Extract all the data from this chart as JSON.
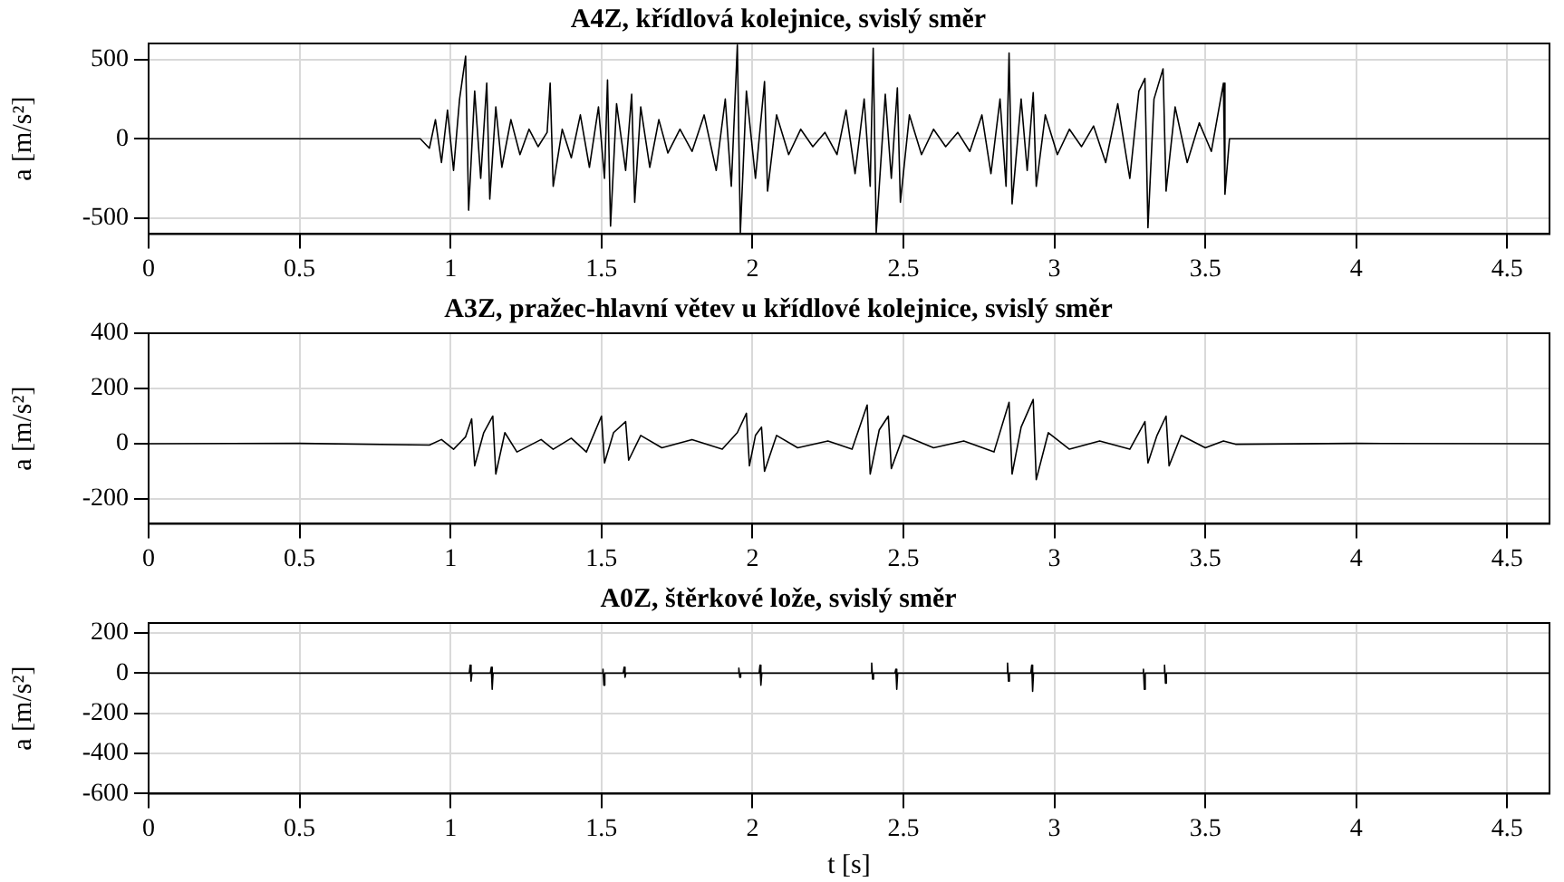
{
  "chart_data": [
    {
      "type": "line",
      "title": "A4Z, křídlová kolejnice, svislý směr",
      "ylabel": "a [m/s²]",
      "xlim": [
        0,
        4.64
      ],
      "xticks": [
        0,
        0.5,
        1,
        1.5,
        2,
        2.5,
        3,
        3.5,
        4,
        4.5
      ],
      "ylim": [
        -600,
        600
      ],
      "yticks": [
        -500,
        0,
        500
      ],
      "grid": true,
      "legend": false,
      "marker": "none",
      "line_style": "solid",
      "series": [
        {
          "color": "#000000",
          "x": [
            0,
            0.3,
            0.6,
            0.9,
            0.93,
            0.95,
            0.97,
            0.99,
            1.01,
            1.03,
            1.05,
            1.06,
            1.08,
            1.1,
            1.12,
            1.13,
            1.15,
            1.17,
            1.2,
            1.23,
            1.26,
            1.29,
            1.32,
            1.33,
            1.34,
            1.37,
            1.4,
            1.43,
            1.46,
            1.49,
            1.51,
            1.52,
            1.53,
            1.55,
            1.58,
            1.6,
            1.61,
            1.63,
            1.66,
            1.69,
            1.72,
            1.76,
            1.8,
            1.84,
            1.88,
            1.91,
            1.93,
            1.95,
            1.96,
            1.98,
            2.01,
            2.04,
            2.05,
            2.08,
            2.12,
            2.16,
            2.2,
            2.24,
            2.28,
            2.31,
            2.34,
            2.37,
            2.39,
            2.4,
            2.41,
            2.44,
            2.46,
            2.48,
            2.49,
            2.52,
            2.56,
            2.6,
            2.64,
            2.68,
            2.72,
            2.76,
            2.79,
            2.82,
            2.84,
            2.85,
            2.86,
            2.89,
            2.91,
            2.93,
            2.94,
            2.97,
            3.01,
            3.05,
            3.09,
            3.13,
            3.17,
            3.21,
            3.25,
            3.28,
            3.3,
            3.31,
            3.33,
            3.36,
            3.37,
            3.4,
            3.44,
            3.48,
            3.52,
            3.56,
            3.565,
            3.58,
            3.8,
            4.1,
            4.4,
            4.64
          ],
          "values": [
            0,
            0,
            0,
            0,
            -60,
            120,
            -150,
            180,
            -200,
            250,
            520,
            -450,
            300,
            -250,
            350,
            -380,
            200,
            -180,
            120,
            -100,
            60,
            -50,
            40,
            350,
            -300,
            60,
            -120,
            150,
            -180,
            200,
            -250,
            370,
            -550,
            220,
            -200,
            280,
            -400,
            200,
            -180,
            120,
            -90,
            60,
            -80,
            150,
            -200,
            250,
            -300,
            590,
            -590,
            300,
            -250,
            360,
            -330,
            150,
            -100,
            60,
            -50,
            40,
            -100,
            180,
            -220,
            250,
            -300,
            570,
            -590,
            280,
            -250,
            320,
            -400,
            150,
            -100,
            60,
            -50,
            40,
            -80,
            150,
            -220,
            250,
            -300,
            540,
            -410,
            250,
            -200,
            290,
            -300,
            150,
            -100,
            60,
            -50,
            80,
            -150,
            220,
            -250,
            300,
            380,
            -560,
            250,
            440,
            -330,
            200,
            -150,
            100,
            -80,
            350,
            -350,
            0,
            0,
            0,
            0,
            0
          ]
        }
      ]
    },
    {
      "type": "line",
      "title": "A3Z, pražec-hlavní větev u křídlové kolejnice, svislý směr",
      "ylabel": "a [m/s²]",
      "xlim": [
        0,
        4.64
      ],
      "xticks": [
        0,
        0.5,
        1,
        1.5,
        2,
        2.5,
        3,
        3.5,
        4,
        4.5
      ],
      "ylim": [
        -290,
        400
      ],
      "yticks": [
        -200,
        0,
        200,
        400
      ],
      "grid": true,
      "legend": false,
      "marker": "none",
      "line_style": "solid",
      "series": [
        {
          "color": "#000000",
          "x": [
            0,
            0.5,
            0.93,
            0.97,
            1.01,
            1.05,
            1.07,
            1.08,
            1.11,
            1.14,
            1.15,
            1.18,
            1.22,
            1.3,
            1.34,
            1.4,
            1.45,
            1.5,
            1.51,
            1.54,
            1.58,
            1.59,
            1.63,
            1.7,
            1.8,
            1.9,
            1.95,
            1.98,
            1.99,
            2.01,
            2.03,
            2.04,
            2.08,
            2.15,
            2.25,
            2.33,
            2.38,
            2.39,
            2.42,
            2.45,
            2.46,
            2.5,
            2.6,
            2.7,
            2.8,
            2.85,
            2.86,
            2.89,
            2.93,
            2.94,
            2.98,
            3.05,
            3.15,
            3.25,
            3.3,
            3.31,
            3.34,
            3.37,
            3.38,
            3.42,
            3.5,
            3.56,
            3.6,
            4.0,
            4.64
          ],
          "values": [
            0,
            1,
            -5,
            15,
            -20,
            25,
            90,
            -80,
            40,
            100,
            -110,
            40,
            -30,
            15,
            -20,
            20,
            -30,
            100,
            -70,
            40,
            80,
            -60,
            30,
            -15,
            15,
            -20,
            40,
            110,
            -80,
            30,
            60,
            -100,
            30,
            -15,
            10,
            -20,
            140,
            -110,
            50,
            100,
            -90,
            30,
            -15,
            10,
            -30,
            150,
            -110,
            60,
            160,
            -130,
            40,
            -20,
            10,
            -20,
            80,
            -70,
            30,
            100,
            -80,
            30,
            -15,
            10,
            -2,
            1,
            0
          ]
        }
      ]
    },
    {
      "type": "line",
      "title": "A0Z, štěrkové lože, svislý směr",
      "xlabel": "t [s]",
      "ylabel": "a [m/s²]",
      "xlim": [
        0,
        4.64
      ],
      "xticks": [
        0,
        0.5,
        1,
        1.5,
        2,
        2.5,
        3,
        3.5,
        4,
        4.5
      ],
      "ylim": [
        -600,
        250
      ],
      "yticks": [
        -600,
        -400,
        -200,
        0,
        200
      ],
      "grid": true,
      "legend": false,
      "marker": "none",
      "line_style": "solid",
      "series": [
        {
          "color": "#000000",
          "x": [
            0,
            1.062,
            1.065,
            1.068,
            1.071,
            1.132,
            1.135,
            1.138,
            1.141,
            1.502,
            1.505,
            1.508,
            1.511,
            1.572,
            1.575,
            1.578,
            1.581,
            1.952,
            1.955,
            1.958,
            1.961,
            2.022,
            2.025,
            2.028,
            2.031,
            2.392,
            2.395,
            2.398,
            2.401,
            2.472,
            2.475,
            2.478,
            2.481,
            2.842,
            2.845,
            2.848,
            2.851,
            2.922,
            2.925,
            2.928,
            2.931,
            3.292,
            3.295,
            3.298,
            3.301,
            3.362,
            3.365,
            3.368,
            3.371,
            4.64
          ],
          "values": [
            0,
            0,
            40,
            -40,
            0,
            0,
            30,
            -80,
            0,
            0,
            20,
            -60,
            0,
            0,
            30,
            -20,
            0,
            0,
            25,
            -20,
            0,
            0,
            40,
            -60,
            0,
            0,
            50,
            -30,
            0,
            0,
            20,
            -80,
            0,
            0,
            50,
            -40,
            0,
            0,
            40,
            -90,
            0,
            0,
            20,
            -80,
            0,
            0,
            40,
            -50,
            0,
            0
          ]
        }
      ]
    }
  ]
}
